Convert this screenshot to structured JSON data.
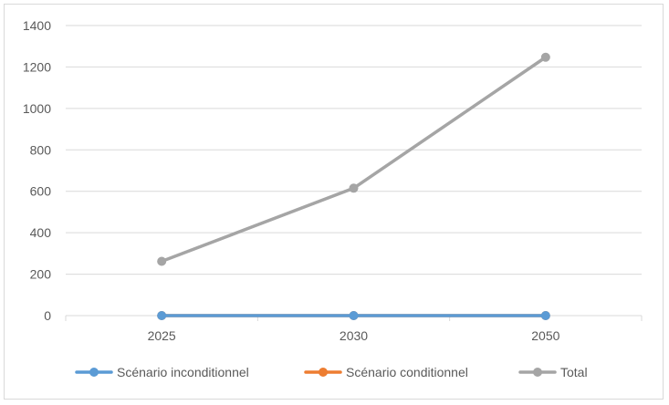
{
  "chart_data": {
    "type": "line",
    "title": "",
    "xlabel": "",
    "ylabel": "",
    "categories": [
      "2025",
      "2030",
      "2050"
    ],
    "ylim": [
      0,
      1400
    ],
    "yticks": [
      "0",
      "200",
      "400",
      "600",
      "800",
      "1000",
      "1200",
      "1400"
    ],
    "grid": true,
    "legend_position": "bottom",
    "series": [
      {
        "name": "Scénario inconditionnel",
        "values": [
          0,
          0,
          0
        ],
        "color": "#5b9bd5"
      },
      {
        "name": "Scénario conditionnel",
        "values": [
          0,
          0,
          0
        ],
        "color": "#ed7d31"
      },
      {
        "name": "Total",
        "values": [
          262,
          615,
          1247
        ],
        "color": "#a5a5a5"
      }
    ]
  }
}
